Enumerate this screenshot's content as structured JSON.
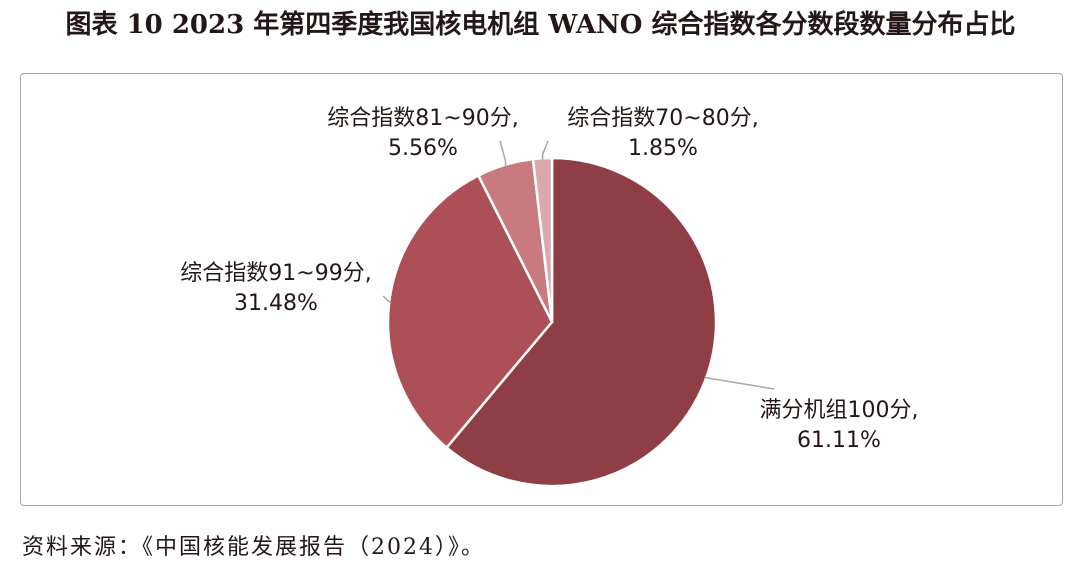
{
  "chart_data": {
    "type": "pie",
    "title": "图表 10  2023 年第四季度我国核电机组 WANO 综合指数各分数段数量分布占比",
    "source": "资料来源：《中国核能发展报告（2024）》。",
    "slices": [
      {
        "label": "满分机组100分",
        "value": 61.11,
        "value_label": "61.11%",
        "color": "#8e3e44"
      },
      {
        "label": "综合指数91~99分",
        "value": 31.48,
        "value_label": "31.48%",
        "color": "#ad4f56"
      },
      {
        "label": "综合指数81~90分",
        "value": 5.56,
        "value_label": "5.56%",
        "color": "#c97a7e"
      },
      {
        "label": "综合指数70~80分",
        "value": 1.85,
        "value_label": "1.85%",
        "color": "#daa9ab"
      }
    ]
  }
}
